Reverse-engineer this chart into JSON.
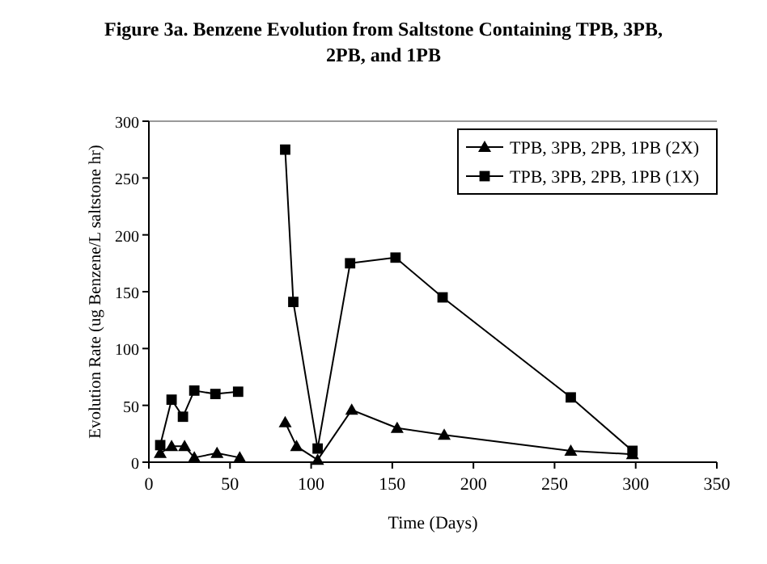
{
  "chart_data": {
    "type": "line",
    "title": "Figure 3a.  Benzene Evolution from Saltstone Containing TPB, 3PB,\n2PB, and 1PB",
    "xlabel": "Time (Days)",
    "ylabel": "Evolution Rate (ug Benzene/L saltstone hr)",
    "xlim": [
      0,
      350
    ],
    "xticks": [
      0,
      50,
      100,
      150,
      200,
      250,
      300,
      350
    ],
    "ylim": [
      0,
      300
    ],
    "yticks": [
      0,
      50,
      100,
      150,
      200,
      250,
      300
    ],
    "grid": false,
    "legend": "top right",
    "series": [
      {
        "name": "TPB, 3PB, 2PB, 1PB (2X)",
        "color": "#000000",
        "marker": "triangle",
        "x": [
          7,
          14,
          22,
          28,
          42,
          56,
          70,
          84,
          91,
          104,
          125,
          153,
          182,
          260,
          298
        ],
        "values": [
          8,
          14,
          14,
          4,
          8,
          4,
          null,
          35,
          14,
          2,
          46,
          30,
          24,
          10,
          7
        ]
      },
      {
        "name": "TPB, 3PB, 2PB, 1PB (1X)",
        "color": "#000000",
        "marker": "square",
        "x": [
          7,
          14,
          21,
          28,
          41,
          55,
          70,
          84,
          89,
          104,
          124,
          152,
          181,
          260,
          298
        ],
        "values": [
          15,
          55,
          40,
          63,
          60,
          62,
          null,
          275,
          141,
          12,
          175,
          180,
          145,
          57,
          10
        ]
      }
    ]
  }
}
